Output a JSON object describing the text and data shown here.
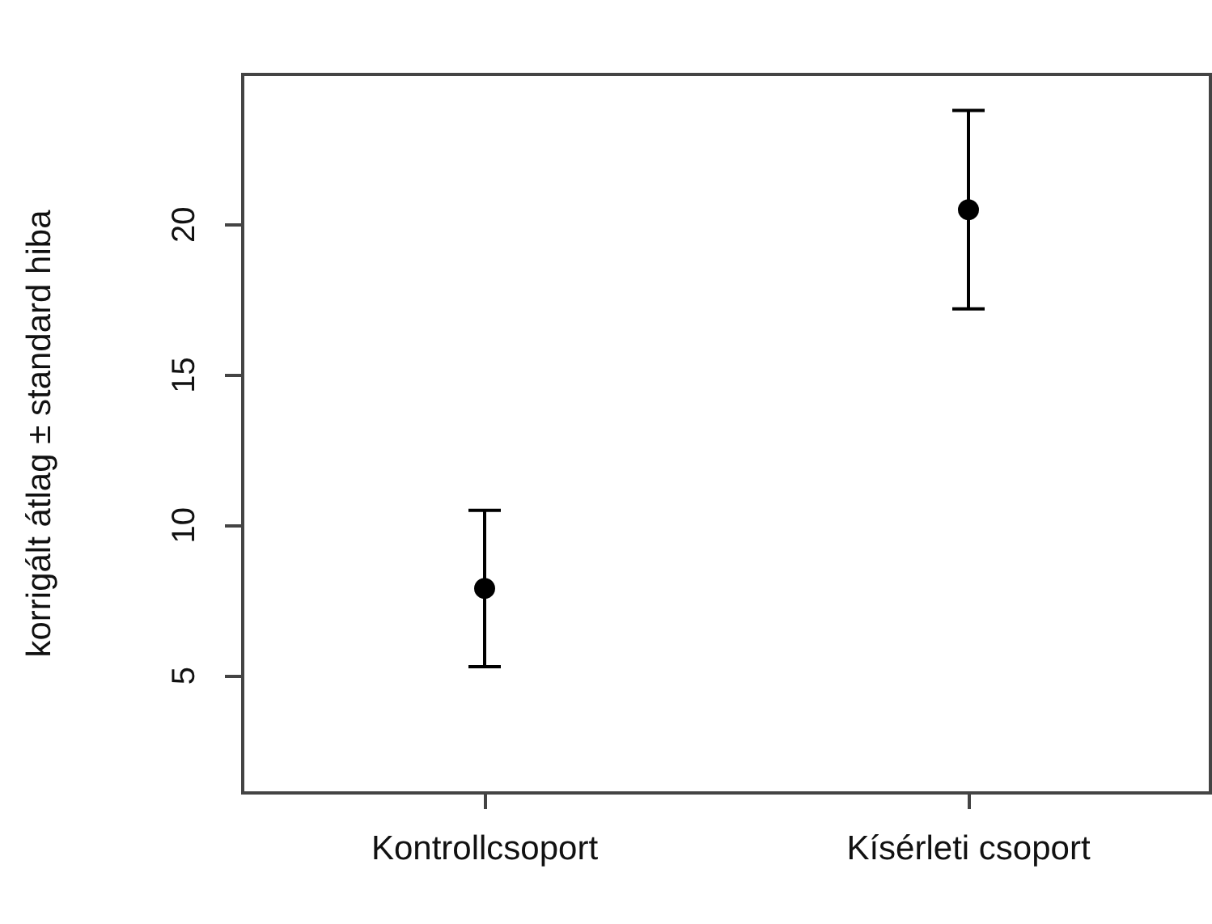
{
  "chart_data": {
    "type": "scatter",
    "ylabel": "korrigált átlag ± standard hiba",
    "categories": [
      "Kontrollcsoport",
      "Kísérleti csoport"
    ],
    "values": [
      7.9,
      20.5
    ],
    "errors": [
      2.6,
      3.3
    ],
    "color": "#000000",
    "ylim": [
      1.1,
      25
    ],
    "yticks": [
      5,
      10,
      15,
      20
    ],
    "marker": "circle"
  }
}
